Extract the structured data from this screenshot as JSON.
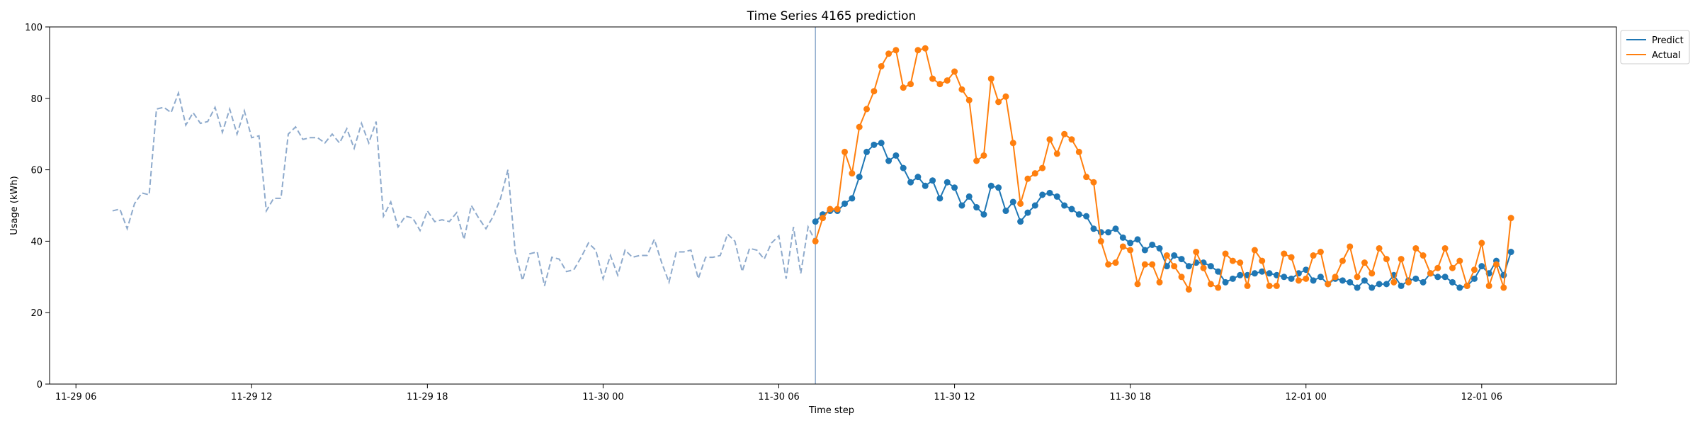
{
  "chart_data": {
    "type": "line",
    "title": "Time Series 4165 prediction",
    "xlabel": "Time step",
    "ylabel": "Usage (kWh)",
    "x_unit": "hours",
    "x_reference": "2023-11-29 00:00",
    "xlim": [
      5.1,
      58.6
    ],
    "ylim": [
      0,
      100
    ],
    "yticks": [
      0,
      20,
      40,
      60,
      80,
      100
    ],
    "xticks": [
      {
        "x": 6,
        "label": "11-29 06"
      },
      {
        "x": 12,
        "label": "11-29 12"
      },
      {
        "x": 18,
        "label": "11-29 18"
      },
      {
        "x": 24,
        "label": "11-30 00"
      },
      {
        "x": 30,
        "label": "11-30 06"
      },
      {
        "x": 36,
        "label": "11-30 12"
      },
      {
        "x": 42,
        "label": "11-30 18"
      },
      {
        "x": 48,
        "label": "12-01 00"
      },
      {
        "x": 54,
        "label": "12-01 06"
      }
    ],
    "grid": false,
    "legend_position": "top-right",
    "forecast_start_x": 31.25,
    "colors": {
      "history": "#8eaacc",
      "predict": "#1f77b4",
      "actual": "#ff7f0e",
      "vline": "#8eaacc"
    },
    "history": {
      "x_start": 7.25,
      "x_step": 0.25,
      "values": [
        48.5,
        49,
        43.5,
        50.5,
        53.5,
        53,
        77,
        77.5,
        76,
        81.5,
        72.5,
        76,
        73,
        73.5,
        77.5,
        70.5,
        77,
        70,
        76.5,
        69,
        69.5,
        48.5,
        52,
        52,
        70,
        72,
        68.5,
        69,
        69,
        67.5,
        70,
        67.5,
        71.5,
        66,
        73,
        67.5,
        73.5,
        47,
        51,
        44,
        47,
        46.5,
        43,
        48.5,
        45.5,
        46,
        45.5,
        48,
        40.5,
        50,
        46.5,
        43.5,
        47,
        52,
        60,
        37,
        29,
        36.5,
        37,
        27.5,
        35.5,
        35,
        31.5,
        32,
        35.5,
        39.5,
        37.5,
        29.5,
        36,
        30.5,
        37.5,
        35.5,
        36,
        36,
        40.5,
        34,
        28.5,
        37,
        37,
        37.5,
        29.5,
        35.5,
        35.5,
        36,
        42,
        40,
        31.5,
        38,
        37.5,
        35,
        39.5,
        41.5,
        29.5,
        44,
        31,
        44,
        40
      ]
    },
    "series": [
      {
        "name": "Predict",
        "x_start": 31.25,
        "x_step": 0.25,
        "values": [
          45.5,
          47.5,
          48.5,
          48.5,
          50.5,
          52,
          58,
          65,
          67,
          67.5,
          62.5,
          64,
          60.5,
          56.5,
          58,
          55.5,
          57,
          52,
          56.5,
          55,
          50,
          52.5,
          49.5,
          47.5,
          55.5,
          55,
          48.5,
          51,
          45.5,
          48,
          50,
          53,
          53.5,
          52.5,
          50,
          49,
          47.5,
          47,
          43.5,
          42.5,
          42.5,
          43.5,
          41,
          39.5,
          40.5,
          37.5,
          39,
          38,
          33,
          36,
          35,
          33,
          34,
          34,
          33,
          31.5,
          28.5,
          29.5,
          30.5,
          30.5,
          31,
          31.5,
          31,
          30.5,
          30,
          29.5,
          31,
          32,
          29,
          30,
          28,
          29.5,
          29,
          28.5,
          27,
          29,
          27,
          28,
          28,
          30.5,
          27.5,
          29,
          29.5,
          28.5,
          31,
          30,
          30,
          28.5,
          27,
          27.5,
          29.5,
          33,
          31,
          34.5,
          30.5,
          37
        ]
      },
      {
        "name": "Actual",
        "x_start": 31.25,
        "x_step": 0.25,
        "values": [
          40,
          46.5,
          49,
          49,
          65,
          59,
          72,
          77,
          82,
          89,
          92.5,
          93.5,
          83,
          84,
          93.5,
          94,
          85.5,
          84,
          85,
          87.5,
          82.5,
          79.5,
          62.5,
          64,
          85.5,
          79,
          80.5,
          67.5,
          50.5,
          57.5,
          59,
          60.5,
          68.5,
          64.5,
          70,
          68.5,
          65,
          58,
          56.5,
          40,
          33.5,
          34,
          38.5,
          37.5,
          28,
          33.5,
          33.5,
          28.5,
          36,
          33,
          30,
          26.5,
          37,
          32.5,
          28,
          27,
          36.5,
          34.5,
          34,
          27.5,
          37.5,
          34.5,
          27.5,
          27.5,
          36.5,
          35.5,
          29,
          29.5,
          36,
          37,
          28,
          30,
          34.5,
          38.5,
          30,
          34,
          31,
          38,
          35,
          28.5,
          35,
          28.5,
          38,
          36,
          31,
          32.5,
          38,
          32.5,
          34.5,
          27.5,
          32,
          39.5,
          27.5,
          33.5,
          27,
          46.5
        ]
      }
    ]
  }
}
